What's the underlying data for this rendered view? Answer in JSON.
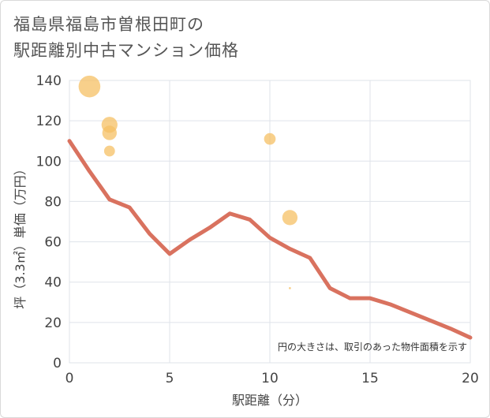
{
  "title_lines": [
    "福島県福島市曽根田町の",
    "駅距離別中古マンション価格"
  ],
  "chart_data": {
    "type": "scatter",
    "title": "福島県福島市曽根田町の駅距離別中古マンション価格",
    "xlabel": "駅距離（分）",
    "ylabel": "坪（3.3㎡）単価（万円）",
    "xlim": [
      0,
      20
    ],
    "ylim": [
      0,
      140
    ],
    "x_ticks": [
      0,
      5,
      10,
      15,
      20
    ],
    "y_ticks": [
      0,
      20,
      40,
      60,
      80,
      100,
      120,
      140
    ],
    "grid": true,
    "note": "円の大きさは、取引のあった物件面積を示す",
    "colors": {
      "points": "#f5c064",
      "line": "#d9725f",
      "grid": "#dfe3ea"
    },
    "series": [
      {
        "name": "取引",
        "kind": "bubble",
        "points": [
          {
            "x": 1,
            "y": 137,
            "size": 3.0
          },
          {
            "x": 2,
            "y": 118,
            "size": 2.2
          },
          {
            "x": 2,
            "y": 114,
            "size": 2.0
          },
          {
            "x": 2,
            "y": 105,
            "size": 1.5
          },
          {
            "x": 10,
            "y": 111,
            "size": 1.6
          },
          {
            "x": 11,
            "y": 72,
            "size": 2.1
          },
          {
            "x": 11,
            "y": 37,
            "size": 0.3
          }
        ]
      },
      {
        "name": "平均",
        "kind": "line",
        "x": [
          0,
          1,
          2,
          3,
          4,
          5,
          6,
          7,
          8,
          9,
          10,
          11,
          12,
          13,
          14,
          15,
          16,
          17,
          18,
          19,
          20
        ],
        "y": [
          110,
          95,
          81,
          77,
          64,
          54,
          61,
          67,
          74,
          71,
          62,
          56.5,
          52,
          37,
          32,
          32,
          29,
          25,
          21,
          17,
          12.5
        ]
      }
    ]
  }
}
